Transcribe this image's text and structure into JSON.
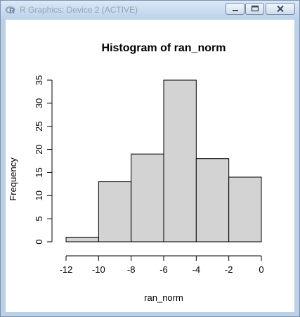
{
  "window": {
    "title": "R Graphics: Device 2 (ACTIVE)",
    "app_icon_letter": "R"
  },
  "chart_data": {
    "type": "bar",
    "title": "Histogram of ran_norm",
    "xlabel": "ran_norm",
    "ylabel": "Frequency",
    "bins": [
      {
        "from": -12,
        "to": -10,
        "count": 1
      },
      {
        "from": -10,
        "to": -8,
        "count": 13
      },
      {
        "from": -8,
        "to": -6,
        "count": 19
      },
      {
        "from": -6,
        "to": -4,
        "count": 35
      },
      {
        "from": -4,
        "to": -2,
        "count": 18
      },
      {
        "from": -2,
        "to": 0,
        "count": 14
      }
    ],
    "xlim": [
      -12,
      0
    ],
    "ylim": [
      0,
      35
    ],
    "x_ticks": [
      -12,
      -10,
      -8,
      -6,
      -4,
      -2,
      0
    ],
    "y_ticks": [
      0,
      5,
      10,
      15,
      20,
      25,
      30,
      35
    ],
    "bar_color": "#d3d3d3",
    "grid": false,
    "legend": "none"
  }
}
